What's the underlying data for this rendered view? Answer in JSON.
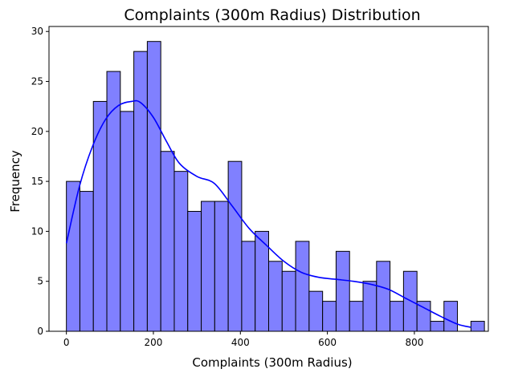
{
  "chart_data": {
    "type": "bar",
    "title": "Complaints (300m Radius) Distribution",
    "xlabel": "Complaints (300m Radius)",
    "ylabel": "Frequency",
    "xlim": [
      -40,
      970
    ],
    "ylim": [
      0,
      30.5
    ],
    "xticks": [
      0,
      200,
      400,
      600,
      800
    ],
    "yticks": [
      0,
      5,
      10,
      15,
      20,
      25,
      30
    ],
    "grid": false,
    "bin_start": 0,
    "bin_width": 31,
    "values": [
      15,
      14,
      23,
      26,
      22,
      28,
      29,
      18,
      16,
      12,
      13,
      13,
      17,
      9,
      10,
      7,
      6,
      9,
      4,
      3,
      8,
      3,
      5,
      7,
      3,
      6,
      3,
      1,
      3,
      0,
      1
    ],
    "kde": {
      "x": [
        0,
        30,
        60,
        90,
        120,
        150,
        170,
        200,
        230,
        260,
        300,
        340,
        380,
        420,
        460,
        500,
        540,
        580,
        620,
        660,
        700,
        740,
        780,
        820,
        860,
        900,
        930
      ],
      "y": [
        8.8,
        14.5,
        18.5,
        21.2,
        22.6,
        23.0,
        22.9,
        21.4,
        19.0,
        16.8,
        15.5,
        14.8,
        12.6,
        10.3,
        8.6,
        7.0,
        5.9,
        5.4,
        5.2,
        5.0,
        4.7,
        4.2,
        3.3,
        2.4,
        1.5,
        0.7,
        0.4
      ]
    },
    "colors": {
      "bar_fill": "#8080ff",
      "bar_edge": "#000000",
      "kde_line": "#0000ff"
    }
  }
}
